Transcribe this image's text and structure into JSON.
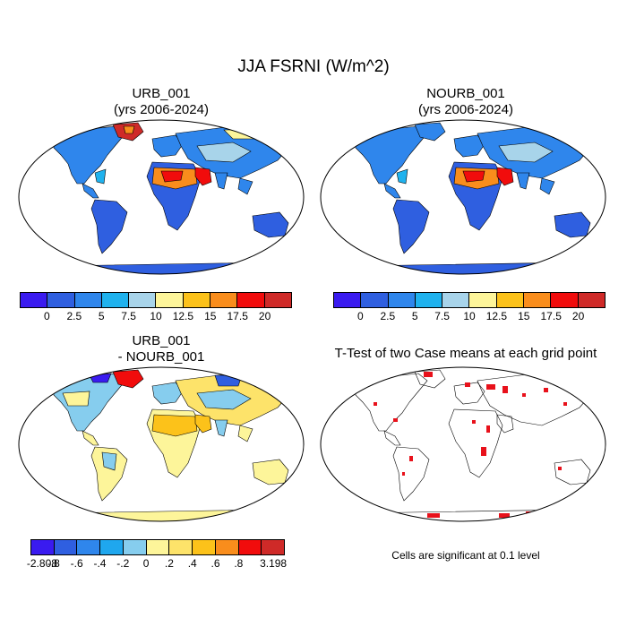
{
  "main_title": "JJA FSRNI (W/m^2)",
  "panels": [
    {
      "title_line1": "URB_001",
      "title_line2": "(yrs 2006-2024)"
    },
    {
      "title_line1": "NOURB_001",
      "title_line2": "(yrs 2006-2024)"
    },
    {
      "title_line1": "URB_001",
      "title_line2": "- NOURB_001"
    },
    {
      "title_line1": "T-Test of two Case means at each grid point",
      "title_line2": ""
    }
  ],
  "colorbar_top": {
    "colors": [
      "#3a1bf0",
      "#2f5fe0",
      "#2f86ec",
      "#1fb2ee",
      "#a8d4ea",
      "#fdf59a",
      "#fcc21a",
      "#f98d1c",
      "#f10c0c",
      "#cf2a28"
    ],
    "labels": [
      "0",
      "2.5",
      "5",
      "7.5",
      "10",
      "12.5",
      "15",
      "17.5",
      "20"
    ]
  },
  "colorbar_diff": {
    "colors": [
      "#3a1bf0",
      "#2f5fe0",
      "#2f86ec",
      "#1fa7ee",
      "#86cdee",
      "#fdf59a",
      "#fde36a",
      "#fcc21a",
      "#f98d1c",
      "#f10c0c",
      "#cf2a28"
    ],
    "labels": [
      "-2.808",
      "-.8",
      "-.6",
      "-.4",
      "-.2",
      "0",
      ".2",
      ".4",
      ".6",
      ".8",
      "3.198"
    ]
  },
  "significance_note": "Cells are significant at 0.1 level"
}
